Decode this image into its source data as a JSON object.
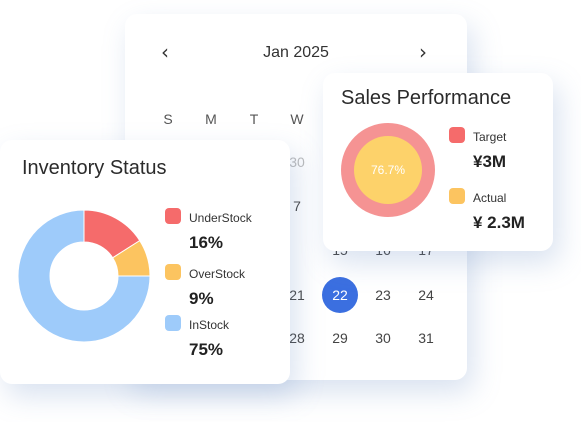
{
  "calendar": {
    "month_label": "Jan 2025",
    "prev_icon": "chevron-left-icon",
    "next_icon": "chevron-right-icon",
    "weekdays": [
      "S",
      "M",
      "T",
      "W"
    ],
    "visible_days": [
      "30",
      "7",
      "15",
      "16",
      "17",
      "21",
      "22",
      "23",
      "24",
      "28",
      "29",
      "30",
      "31"
    ],
    "selected_day": "22",
    "selected_color": "#3b6fe0"
  },
  "inventory": {
    "title": "Inventory Status",
    "items": [
      {
        "label": "UnderStock",
        "value_text": "16%",
        "value": 16,
        "color": "#f56b6b"
      },
      {
        "label": "OverStock",
        "value_text": "9%",
        "value": 9,
        "color": "#fcc460"
      },
      {
        "label": "InStock",
        "value_text": "75%",
        "value": 75,
        "color": "#9ecbfa"
      }
    ]
  },
  "sales": {
    "title": "Sales Performance",
    "percent_label": "76.7%",
    "target": {
      "label": "Target",
      "value_text": "¥3M",
      "color": "#f56b6b"
    },
    "actual": {
      "label": "Actual",
      "value_text": "¥ 2.3M",
      "color": "#fcc460"
    }
  }
}
